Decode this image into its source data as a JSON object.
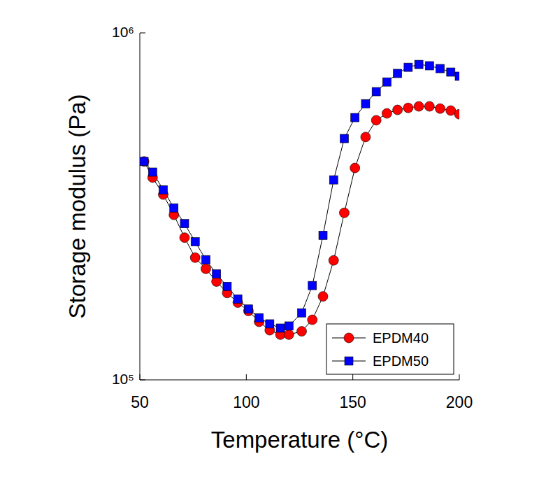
{
  "chart_data": {
    "type": "line",
    "x_label": "Temperature (°C)",
    "y_label": "Storage modulus (Pa)",
    "x": [
      52,
      56,
      61,
      66,
      71,
      76,
      81,
      86,
      91,
      96,
      101,
      106,
      111,
      116,
      120,
      126,
      131,
      136,
      141,
      146,
      151,
      156,
      161,
      166,
      171,
      176,
      181,
      186,
      191,
      196,
      200
    ],
    "series": [
      {
        "name": "EPDM40",
        "color": "#ff0000",
        "marker": "circle",
        "values": [
          426000,
          383000,
          342000,
          299000,
          257000,
          225000,
          209000,
          192000,
          178000,
          167000,
          158000,
          147000,
          139000,
          135000,
          135000,
          138000,
          149000,
          174000,
          221000,
          303000,
          408000,
          501000,
          560000,
          586000,
          600000,
          608000,
          614000,
          614000,
          605000,
          597000,
          583000
        ]
      },
      {
        "name": "EPDM50",
        "color": "#0000ff",
        "marker": "square",
        "values": [
          426000,
          397000,
          353000,
          313000,
          282000,
          250000,
          222000,
          202000,
          186000,
          171000,
          160000,
          151000,
          145000,
          141000,
          143000,
          156000,
          187000,
          261000,
          377000,
          496000,
          570000,
          625000,
          677000,
          722000,
          764000,
          796000,
          811000,
          804000,
          789000,
          771000,
          750000
        ]
      }
    ],
    "xlim": [
      50,
      200
    ],
    "xticks": [
      50,
      100,
      150,
      200
    ],
    "ylim": [
      100000,
      1000000
    ],
    "yticks": [
      {
        "value": 100000,
        "label": "10⁵"
      },
      {
        "value": 1000000,
        "label": "10⁶"
      }
    ],
    "log": "y",
    "grid": false,
    "legend": "lower right"
  }
}
